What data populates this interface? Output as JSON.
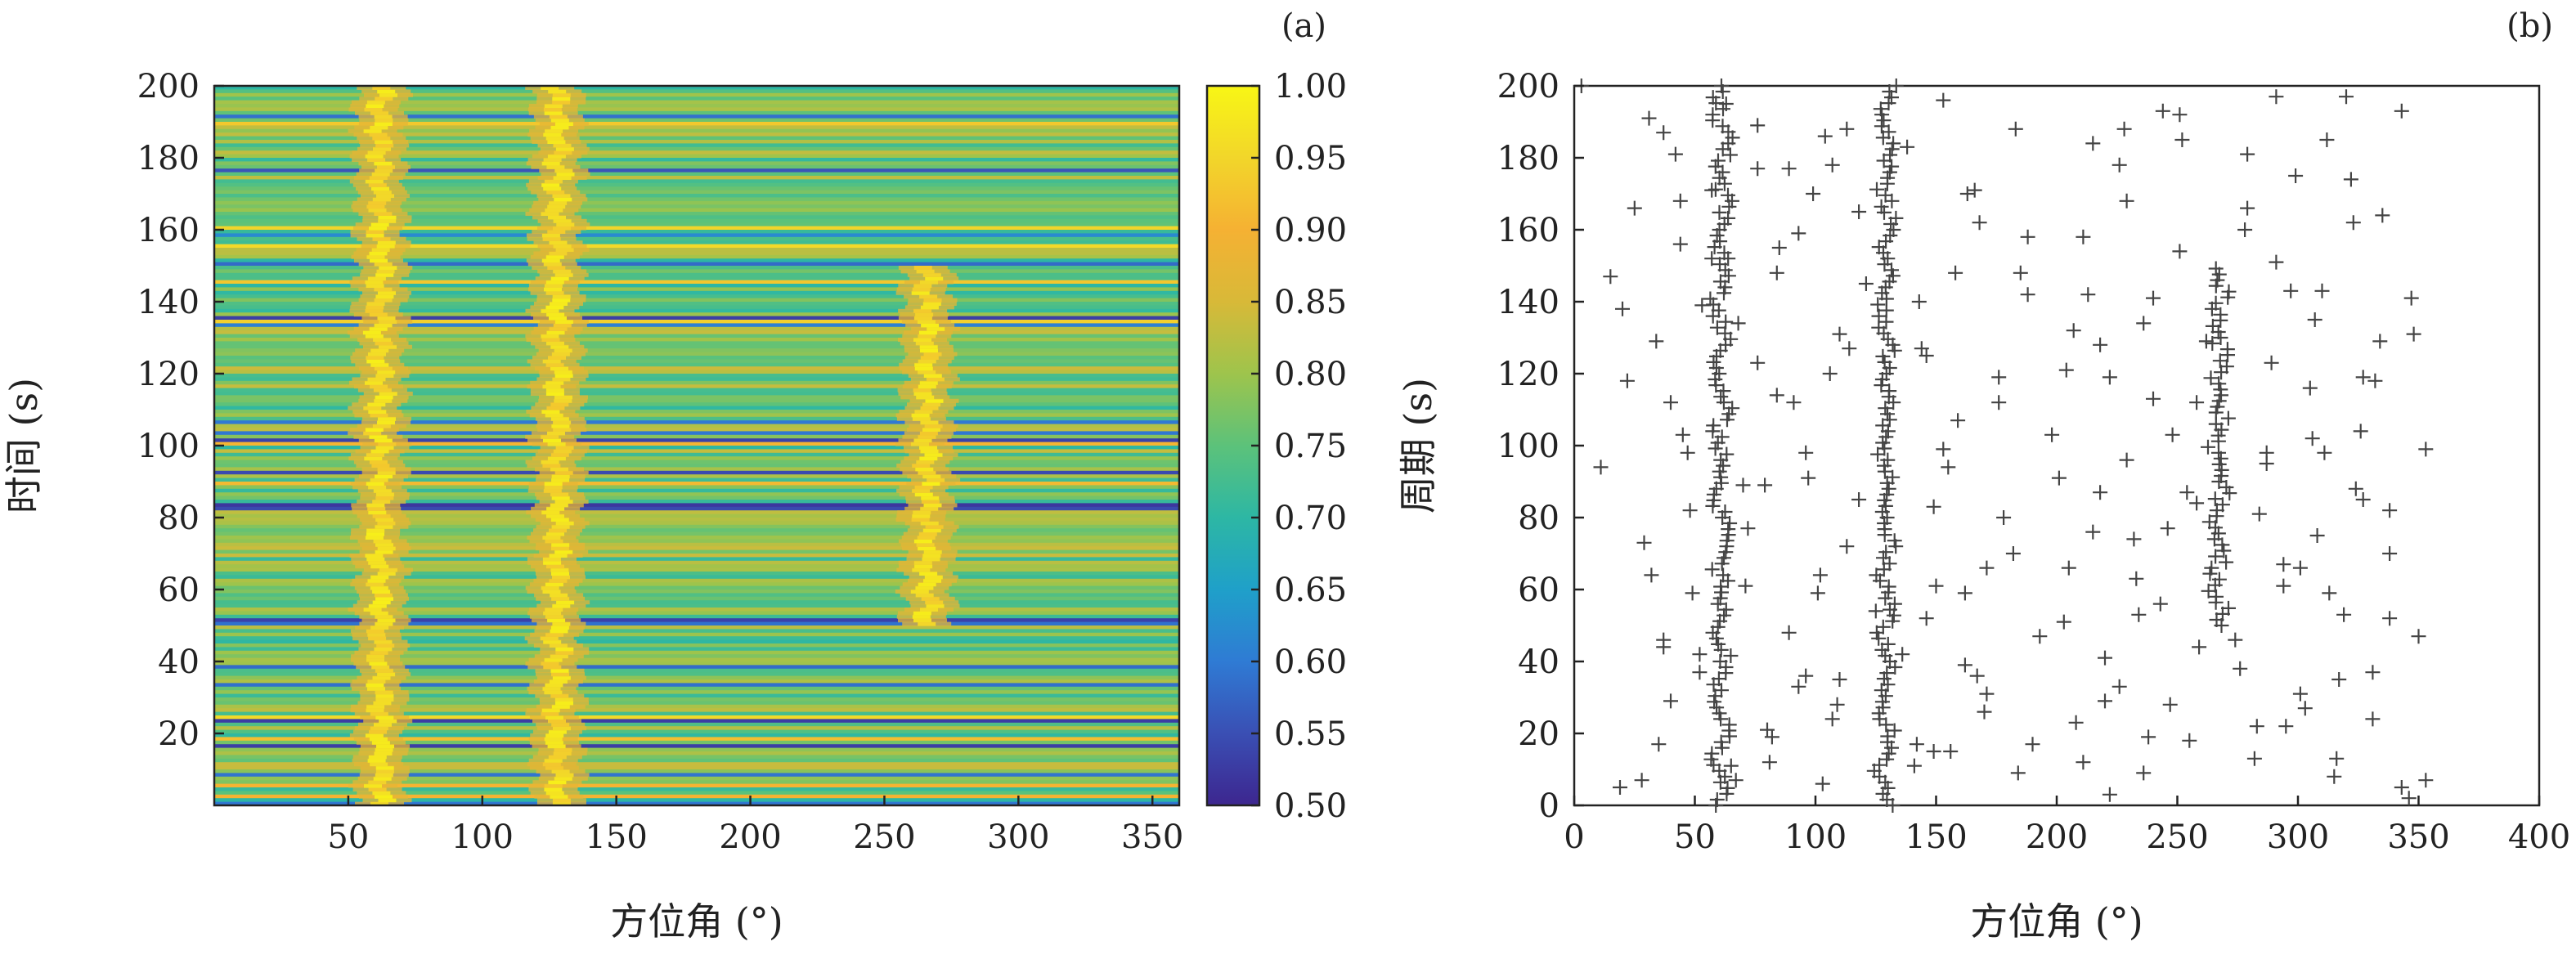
{
  "chart_data": [
    {
      "type": "heatmap",
      "panel_label": "(a)",
      "xlabel": "方位角 (°)",
      "ylabel": "时间 (s)",
      "xlim": [
        0,
        360
      ],
      "ylim": [
        0,
        200
      ],
      "xticks": [
        50,
        100,
        150,
        200,
        250,
        300,
        350
      ],
      "yticks": [
        20,
        40,
        60,
        80,
        100,
        120,
        140,
        160,
        180,
        200
      ],
      "colorbar": {
        "range": [
          0.5,
          1.0
        ],
        "ticks": [
          "1.00",
          "0.95",
          "0.90",
          "0.85",
          "0.80",
          "0.75",
          "0.70",
          "0.65",
          "0.60",
          "0.55",
          "0.50"
        ],
        "colormap": [
          "#3d268f",
          "#3a4fb4",
          "#2f7bd4",
          "#1fa0c9",
          "#2db7a4",
          "#5cc27a",
          "#9ec44c",
          "#d8b938",
          "#f5b133",
          "#f2d62a",
          "#f8f615"
        ]
      },
      "ridges": [
        {
          "azimuth_deg": 62,
          "t_start_s": 0,
          "t_end_s": 200
        },
        {
          "azimuth_deg": 128,
          "t_start_s": 0,
          "t_end_s": 200
        },
        {
          "azimuth_deg": 266,
          "t_start_s": 50,
          "t_end_s": 150
        }
      ],
      "background_level": 0.77
    },
    {
      "type": "scatter",
      "panel_label": "(b)",
      "xlabel": "方位角 (°)",
      "ylabel": "周期 (s)",
      "xlim": [
        0,
        400
      ],
      "ylim": [
        0,
        200
      ],
      "xticks": [
        0,
        50,
        100,
        150,
        200,
        250,
        300,
        350,
        400
      ],
      "yticks": [
        0,
        20,
        40,
        60,
        80,
        100,
        120,
        140,
        160,
        180,
        200
      ],
      "marker": "+",
      "color": "#444444",
      "tracks": [
        {
          "azimuth_deg": 61,
          "t_start_s": 0,
          "t_end_s": 200
        },
        {
          "azimuth_deg": 129,
          "t_start_s": 0,
          "t_end_s": 200
        },
        {
          "azimuth_deg": 267,
          "t_start_s": 50,
          "t_end_s": 150
        }
      ],
      "x": [
        3,
        19,
        31,
        35,
        37,
        40,
        44,
        48,
        52,
        57,
        63,
        67,
        71,
        76,
        79,
        81,
        84,
        89,
        93,
        96,
        101,
        104,
        107,
        110,
        113,
        118,
        141,
        143,
        146,
        149,
        153,
        156,
        159,
        163,
        167,
        171,
        176,
        183,
        184,
        188,
        193,
        201,
        204,
        208,
        211,
        215,
        218,
        220,
        222,
        226,
        229,
        233,
        236,
        238,
        244,
        247,
        251,
        254,
        258,
        276,
        279,
        282,
        287,
        291,
        294,
        297,
        301,
        305,
        308,
        312,
        315,
        319,
        323,
        326,
        331,
        334,
        338,
        343,
        346,
        350,
        353,
        20,
        28,
        32,
        37,
        40,
        44,
        47,
        52,
        57,
        65,
        68,
        72,
        76,
        80,
        84,
        89,
        93,
        97,
        103,
        107,
        110,
        114,
        118,
        121,
        125,
        138,
        142,
        146,
        150,
        153,
        158,
        162,
        166,
        170,
        176,
        182,
        188,
        203,
        207,
        211,
        215,
        218,
        222,
        226,
        229,
        232,
        236,
        240,
        243,
        248,
        251,
        255,
        258,
        262,
        274,
        279,
        283,
        287,
        291,
        294,
        299,
        303,
        306,
        310,
        313,
        316,
        320,
        324,
        327,
        331,
        335,
        338,
        343,
        347,
        11,
        15,
        22,
        25,
        29,
        34,
        37,
        42,
        45,
        49,
        53,
        70,
        76,
        82,
        85,
        91,
        96,
        99,
        102,
        106,
        109,
        113,
        136,
        144,
        149,
        155,
        162,
        168,
        171,
        178,
        185,
        190,
        198,
        205,
        213,
        220,
        228,
        234,
        240,
        246,
        252,
        259,
        278,
        284,
        289,
        295,
        301,
        307,
        311,
        317,
        322,
        327,
        332,
        338,
        348,
        353
      ],
      "y": [
        200,
        5,
        191,
        17,
        44,
        112,
        168,
        82,
        37,
        152,
        195,
        7,
        61,
        123,
        89,
        12,
        148,
        177,
        33,
        98,
        59,
        186,
        24,
        131,
        72,
        165,
        11,
        140,
        52,
        83,
        196,
        15,
        107,
        170,
        36,
        66,
        119,
        188,
        9,
        142,
        47,
        91,
        121,
        23,
        158,
        76,
        128,
        41,
        3,
        178,
        96,
        63,
        134,
        19,
        193,
        28,
        154,
        87,
        112,
        38,
        166,
        13,
        98,
        197,
        61,
        143,
        31,
        116,
        75,
        185,
        8,
        53,
        162,
        104,
        24,
        129,
        70,
        193,
        2,
        47,
        99,
        138,
        7,
        64,
        187,
        29,
        156,
        98,
        42,
        171,
        11,
        134,
        77,
        189,
        21,
        114,
        48,
        159,
        91,
        6,
        178,
        35,
        127,
        85,
        145,
        54,
        183,
        17,
        125,
        61,
        99,
        148,
        39,
        171,
        26,
        112,
        70,
        158,
        51,
        132,
        12,
        184,
        87,
        119,
        33,
        168,
        74,
        9,
        141,
        56,
        103,
        192,
        18,
        84,
        129,
        46,
        181,
        22,
        95,
        151,
        67,
        175,
        27,
        102,
        143,
        59,
        13,
        197,
        88,
        119,
        37,
        164,
        82,
        5,
        141,
        94,
        147,
        118,
        166,
        73,
        129,
        46,
        181,
        103,
        59,
        139,
        89,
        177,
        19,
        155,
        112,
        36,
        170,
        64,
        120,
        28,
        188,
        42,
        127,
        15,
        94,
        59,
        162,
        31,
        80,
        148,
        17,
        103,
        66,
        142,
        29,
        188,
        53,
        113,
        77,
        185,
        44,
        160,
        81,
        123,
        22,
        66,
        135,
        98,
        35,
        174,
        85,
        118,
        52,
        131,
        7
      ]
    }
  ]
}
